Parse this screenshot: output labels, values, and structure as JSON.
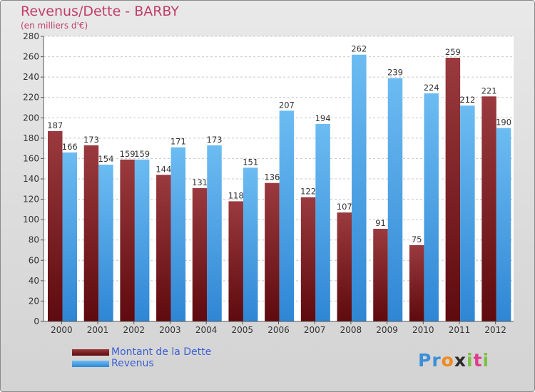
{
  "title": "Revenus/Dette - BARBY",
  "subtitle": "(en milliers d'€)",
  "legend": [
    {
      "label": "Montant de la Dette",
      "color": "#6b0f14"
    },
    {
      "label": "Revenus",
      "color": "#4aa3e6"
    }
  ],
  "logo": {
    "letters": [
      "P",
      "r",
      "o",
      "x",
      "i",
      "t",
      "i"
    ],
    "colors": [
      "#3a8fd8",
      "#3a8fd8",
      "#f08a1c",
      "#2a2a2a",
      "#7cc242",
      "#e03c8c",
      "#7cc242"
    ]
  },
  "colors": {
    "title": "#c0406a",
    "dette_dark": "#5e0a0e",
    "dette_light": "#9a3a3e",
    "revenus_light": "#6cbcf2",
    "revenus_dark": "#2f86d4"
  },
  "chart_data": {
    "type": "bar",
    "categories": [
      "2000",
      "2001",
      "2002",
      "2003",
      "2004",
      "2005",
      "2006",
      "2007",
      "2008",
      "2009",
      "2010",
      "2011",
      "2012"
    ],
    "series": [
      {
        "name": "Montant de la Dette",
        "values": [
          187,
          173,
          159,
          144,
          131,
          118,
          136,
          122,
          107,
          91,
          75,
          259,
          221
        ]
      },
      {
        "name": "Revenus",
        "values": [
          166,
          154,
          159,
          171,
          173,
          151,
          207,
          194,
          262,
          239,
          224,
          212,
          190
        ]
      }
    ],
    "ylim": [
      0,
      280
    ],
    "yticks": [
      0,
      20,
      40,
      60,
      80,
      100,
      120,
      140,
      160,
      180,
      200,
      220,
      240,
      260,
      280
    ],
    "grid": true,
    "legend_position": "bottom-left"
  }
}
